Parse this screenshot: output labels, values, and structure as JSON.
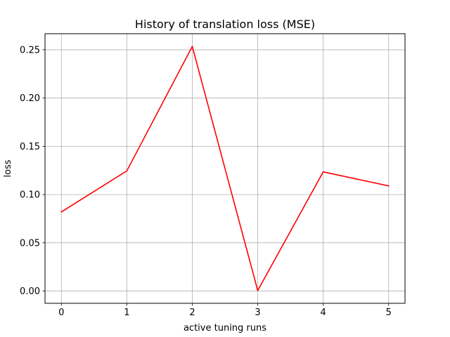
{
  "chart_data": {
    "type": "line",
    "title": "History of translation loss (MSE)",
    "xlabel": "active tuning runs",
    "ylabel": "loss",
    "x": [
      0,
      1,
      2,
      3,
      4,
      5
    ],
    "series": [
      {
        "values": [
          0.082,
          0.1245,
          0.2535,
          0.0005,
          0.1235,
          0.109
        ],
        "color": "#ff0000"
      }
    ],
    "xticks": [
      0,
      1,
      2,
      3,
      4,
      5
    ],
    "xtick_labels": [
      "0",
      "1",
      "2",
      "3",
      "4",
      "5"
    ],
    "yticks": [
      0.0,
      0.05,
      0.1,
      0.15,
      0.2,
      0.25
    ],
    "ytick_labels": [
      "0.00",
      "0.05",
      "0.10",
      "0.15",
      "0.20",
      "0.25"
    ],
    "xlim": [
      -0.25,
      5.25
    ],
    "ylim": [
      -0.0127,
      0.2667
    ],
    "grid": true,
    "legend": "none"
  }
}
